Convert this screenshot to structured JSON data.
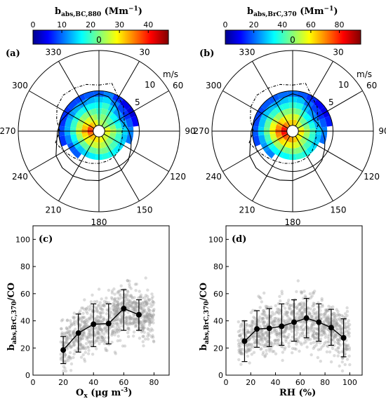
{
  "chart_data": [
    {
      "type": "polar-heatmap",
      "panel": "(a)",
      "colorbar_label": "b",
      "colorbar_sub": "abs,BC,880",
      "colorbar_unit": "(Mm",
      "colorbar_unit_sup": "−1",
      "colorbar_unit_close": ")",
      "colorbar_ticks": [
        "0",
        "10",
        "20",
        "30",
        "40"
      ],
      "colorbar_range": [
        0,
        47
      ],
      "angle_labels": [
        "0",
        "30",
        "60",
        "90",
        "120",
        "150",
        "180",
        "210",
        "240",
        "270",
        "300",
        "330"
      ],
      "speed_unit": "m/s",
      "speed_rings": [
        "5",
        "10"
      ],
      "bins": {
        "sectors": 24,
        "rings": [
          [
            1,
            2
          ],
          [
            2,
            3
          ],
          [
            3,
            4
          ],
          [
            4,
            5
          ],
          [
            5,
            6
          ],
          [
            6,
            7
          ]
        ],
        "values": [
          [
            24,
            22,
            20,
            18,
            15,
            10
          ],
          [
            26,
            24,
            22,
            20,
            16,
            12
          ],
          [
            25,
            23,
            20,
            16,
            12,
            8
          ],
          [
            24,
            22,
            18,
            13,
            9,
            5
          ],
          [
            24,
            21,
            17,
            12,
            8,
            4
          ],
          [
            28,
            24,
            19,
            14,
            10,
            6
          ],
          [
            30,
            26,
            22,
            16,
            12,
            null
          ],
          [
            28,
            24,
            20,
            15,
            11,
            null
          ],
          [
            27,
            23,
            20,
            16,
            null,
            null
          ],
          [
            27,
            24,
            21,
            17,
            null,
            null
          ],
          [
            28,
            25,
            22,
            18,
            null,
            null
          ],
          [
            29,
            26,
            23,
            19,
            null,
            null
          ],
          [
            30,
            27,
            23,
            18,
            null,
            null
          ],
          [
            30,
            27,
            22,
            17,
            null,
            null
          ],
          [
            31,
            27,
            22,
            16,
            null,
            null
          ],
          [
            32,
            28,
            22,
            15,
            10,
            null
          ],
          [
            34,
            29,
            23,
            16,
            10,
            null
          ],
          [
            36,
            31,
            25,
            18,
            12,
            8
          ],
          [
            40,
            34,
            27,
            20,
            14,
            9
          ],
          [
            38,
            32,
            26,
            20,
            14,
            8
          ],
          [
            35,
            30,
            25,
            19,
            13,
            8
          ],
          [
            32,
            28,
            24,
            19,
            14,
            9
          ],
          [
            30,
            27,
            23,
            18,
            13,
            9
          ],
          [
            28,
            25,
            22,
            18,
            14,
            10
          ]
        ]
      },
      "frequency_solid": [
        6.5,
        6.2,
        5.5,
        4.8,
        4.2,
        4.6,
        5.2,
        5.8,
        6.4,
        7.2,
        7.8,
        8.0,
        8.6,
        8.8,
        9.0,
        9.0,
        8.6,
        7.6,
        7.2,
        6.8,
        6.2,
        5.8,
        5.6,
        6.0
      ],
      "frequency_dashed": [
        8.0,
        8.6,
        6.8,
        6.0,
        5.0,
        4.6,
        4.0,
        4.2,
        4.4,
        4.8,
        5.2,
        5.4,
        5.6,
        5.8,
        6.0,
        6.4,
        7.0,
        7.8,
        6.8,
        7.6,
        8.4,
        8.8,
        8.6,
        8.4
      ]
    },
    {
      "type": "polar-heatmap",
      "panel": "(b)",
      "colorbar_label": "b",
      "colorbar_sub": "abs,BrC,370",
      "colorbar_unit": "(Mm",
      "colorbar_unit_sup": "−1",
      "colorbar_unit_close": ")",
      "colorbar_ticks": [
        "0",
        "20",
        "40",
        "60",
        "80"
      ],
      "colorbar_range": [
        0,
        95
      ],
      "angle_labels": [
        "0",
        "30",
        "60",
        "90",
        "120",
        "150",
        "180",
        "210",
        "240",
        "270",
        "300",
        "330"
      ],
      "speed_unit": "m/s",
      "speed_rings": [
        "5",
        "10"
      ],
      "bins": {
        "sectors": 24,
        "rings": [
          [
            1,
            2
          ],
          [
            2,
            3
          ],
          [
            3,
            4
          ],
          [
            4,
            5
          ],
          [
            5,
            6
          ],
          [
            6,
            7
          ]
        ],
        "values": [
          [
            62,
            55,
            48,
            40,
            32,
            22
          ],
          [
            64,
            56,
            46,
            38,
            30,
            20
          ],
          [
            58,
            50,
            40,
            30,
            22,
            16
          ],
          [
            55,
            46,
            36,
            26,
            18,
            12
          ],
          [
            52,
            44,
            34,
            24,
            16,
            10
          ],
          [
            58,
            48,
            38,
            28,
            20,
            14
          ],
          [
            64,
            52,
            42,
            32,
            24,
            null
          ],
          [
            60,
            50,
            40,
            30,
            22,
            null
          ],
          [
            58,
            48,
            40,
            32,
            null,
            null
          ],
          [
            60,
            50,
            42,
            34,
            null,
            null
          ],
          [
            62,
            54,
            46,
            38,
            null,
            null
          ],
          [
            64,
            56,
            48,
            40,
            null,
            null
          ],
          [
            66,
            58,
            48,
            38,
            null,
            null
          ],
          [
            68,
            58,
            46,
            36,
            null,
            null
          ],
          [
            70,
            60,
            48,
            36,
            null,
            null
          ],
          [
            74,
            62,
            50,
            36,
            24,
            null
          ],
          [
            78,
            66,
            52,
            38,
            26,
            null
          ],
          [
            82,
            70,
            56,
            42,
            28,
            18
          ],
          [
            86,
            74,
            60,
            46,
            32,
            20
          ],
          [
            82,
            70,
            58,
            44,
            30,
            18
          ],
          [
            76,
            66,
            54,
            42,
            30,
            18
          ],
          [
            70,
            62,
            50,
            40,
            30,
            20
          ],
          [
            66,
            58,
            48,
            38,
            28,
            20
          ],
          [
            63,
            56,
            48,
            38,
            30,
            22
          ]
        ]
      },
      "frequency_solid": [
        6.5,
        6.2,
        5.5,
        4.8,
        4.2,
        4.6,
        5.2,
        5.8,
        6.4,
        7.2,
        7.8,
        8.0,
        8.6,
        8.8,
        9.0,
        9.0,
        8.6,
        7.6,
        7.2,
        6.8,
        6.2,
        5.8,
        5.6,
        6.0
      ],
      "frequency_dashed": [
        8.0,
        8.6,
        6.8,
        6.0,
        5.0,
        4.6,
        4.0,
        4.2,
        4.4,
        4.8,
        5.2,
        5.4,
        5.6,
        5.8,
        6.0,
        6.4,
        7.0,
        7.8,
        6.8,
        7.6,
        8.4,
        8.8,
        8.6,
        8.4
      ]
    },
    {
      "type": "scatter",
      "panel": "(c)",
      "ylabel_main": "b",
      "ylabel_sub": "abs,BrC,370",
      "ylabel_tail": "/CO",
      "xlabel": "O",
      "xlabel_sub": "x",
      "xlabel_unit": " (μg m",
      "xlabel_unit_sup": "-3",
      "xlabel_unit_close": ")",
      "xlim": [
        0,
        90
      ],
      "ylim": [
        0,
        110
      ],
      "xticks": [
        "0",
        "20",
        "40",
        "60",
        "80"
      ],
      "yticks": [
        "0",
        "20",
        "40",
        "60",
        "80",
        "100"
      ],
      "mean_x": [
        20,
        30,
        40,
        50,
        60,
        70
      ],
      "mean_y": [
        18.5,
        31,
        37.5,
        38,
        49,
        44.5
      ],
      "err_low": [
        8.5,
        17,
        21,
        23,
        33,
        33
      ],
      "err_high": [
        28.5,
        45,
        52.5,
        52.5,
        63,
        55.5
      ],
      "cloud": {
        "x_range": [
          18,
          80
        ],
        "n": 900
      }
    },
    {
      "type": "scatter",
      "panel": "(d)",
      "ylabel_main": "b",
      "ylabel_sub": "abs,BrC,370",
      "ylabel_tail": "/CO",
      "xlabel": "RH (%)",
      "xlim": [
        0,
        110
      ],
      "ylim": [
        0,
        110
      ],
      "xticks": [
        "0",
        "20",
        "40",
        "60",
        "80",
        "100"
      ],
      "yticks": [
        "0",
        "20",
        "40",
        "60",
        "80",
        "100"
      ],
      "mean_x": [
        15,
        25,
        35,
        45,
        55,
        65,
        75,
        85,
        95
      ],
      "mean_y": [
        25,
        34,
        34.5,
        36,
        39,
        42,
        39,
        35,
        27.5
      ],
      "err_low": [
        10,
        20.5,
        21,
        22,
        25,
        27.5,
        25,
        22,
        13.5
      ],
      "err_high": [
        40,
        47.5,
        49,
        52.5,
        55.5,
        56.5,
        52.5,
        48.5,
        41.5
      ],
      "cloud": {
        "x_range": [
          10,
          100
        ],
        "n": 1000
      }
    }
  ]
}
